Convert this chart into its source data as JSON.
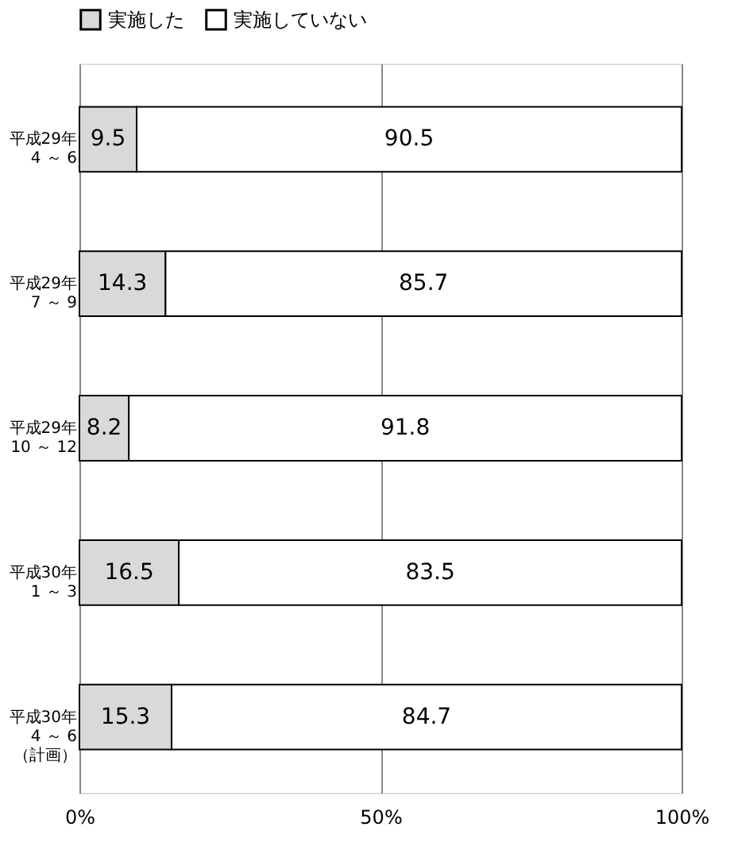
{
  "chart_data": {
    "type": "bar",
    "orientation": "horizontal",
    "stacked": true,
    "categories": [
      "平成29年\n4 ～ 6",
      "平成29年\n7 ～ 9",
      "平成29年\n10 ～ 12",
      "平成30年\n1 ～ 3",
      "平成30年\n4 ～ 6\n（計画）"
    ],
    "series": [
      {
        "name": "実施した",
        "color": "#d9d9d9",
        "values": [
          9.5,
          14.3,
          8.2,
          16.5,
          15.3
        ]
      },
      {
        "name": "実施していない",
        "color": "#ffffff",
        "values": [
          90.5,
          85.7,
          91.8,
          83.5,
          84.7
        ]
      }
    ],
    "xlim": [
      0,
      100
    ],
    "xticks": [
      {
        "value": 0,
        "label": "0%"
      },
      {
        "value": 50,
        "label": "50%"
      },
      {
        "value": 100,
        "label": "100%"
      }
    ],
    "grid": "x",
    "legend": "top",
    "data_labels": true
  }
}
